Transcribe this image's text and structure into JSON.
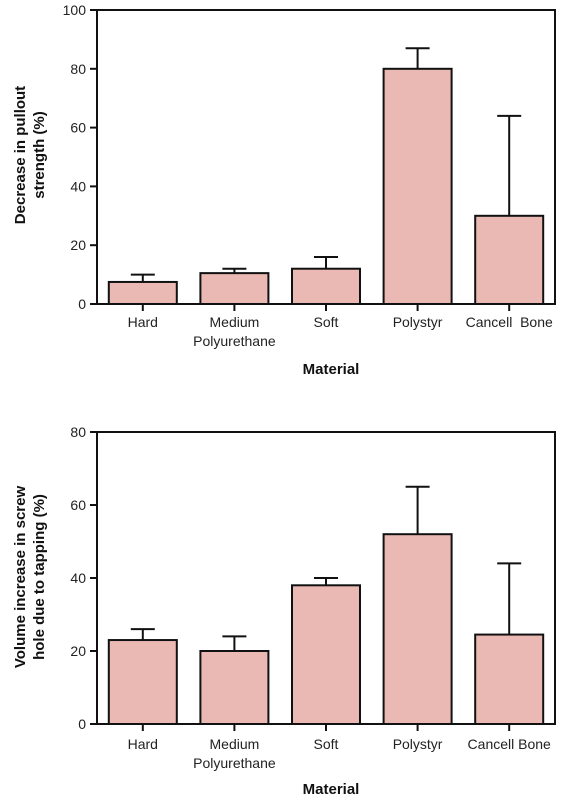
{
  "chart_data": [
    {
      "type": "bar",
      "categories": [
        "Hard",
        "Medium\nPolyurethane",
        "Soft",
        "Polystyr",
        "Cancell  Bone"
      ],
      "values": [
        7.5,
        10.5,
        12,
        80,
        30
      ],
      "error_upper": [
        10,
        12,
        16,
        87,
        64
      ],
      "ylim": [
        0,
        100
      ],
      "yticks": [
        0,
        20,
        40,
        60,
        80,
        100
      ],
      "xlabel": "Material",
      "ylabel_lines": [
        "Decrease in pullout",
        "strength (%)"
      ],
      "bar_color": "#ebb9b3",
      "grid": false
    },
    {
      "type": "bar",
      "categories": [
        "Hard",
        "Medium\nPolyurethane",
        "Soft",
        "Polystyr",
        "Cancell Bone"
      ],
      "values": [
        23,
        20,
        38,
        52,
        24.5
      ],
      "error_upper": [
        26,
        24,
        40,
        65,
        44
      ],
      "ylim": [
        0,
        80
      ],
      "yticks": [
        0,
        20,
        40,
        60,
        80
      ],
      "xlabel": "Material",
      "ylabel_lines": [
        "Volume increase in screw",
        "hole due to tapping (%)"
      ],
      "bar_color": "#ebb9b3",
      "grid": false
    }
  ]
}
